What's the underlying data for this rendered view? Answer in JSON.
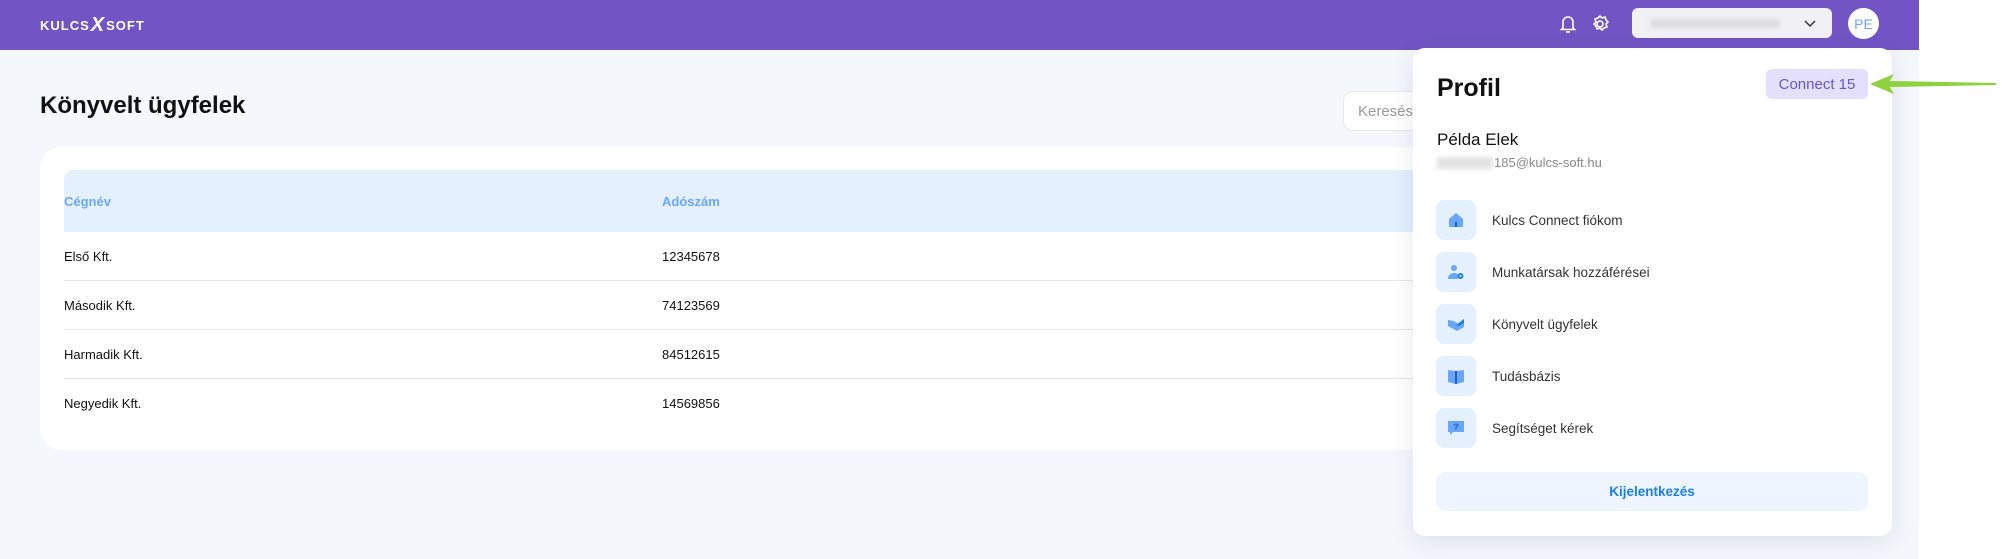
{
  "header": {
    "logo": {
      "left": "KULCS",
      "x": "X",
      "right": "SOFT"
    },
    "avatar_initials": "PE",
    "icons": [
      "bell-icon",
      "gear-icon",
      "chevron-down-icon"
    ]
  },
  "page": {
    "title": "Könyvelt ügyfelek",
    "search_placeholder": "Keresés"
  },
  "table": {
    "columns": [
      "Cégnév",
      "Adószám"
    ],
    "rows": [
      [
        "Első Kft.",
        "12345678"
      ],
      [
        "Második Kft.",
        "74123569"
      ],
      [
        "Harmadik Kft.",
        "84512615"
      ],
      [
        "Negyedik Kft.",
        "14569856"
      ]
    ]
  },
  "profile": {
    "title": "Profil",
    "version_badge": "Connect 15",
    "name": "Példa Elek",
    "email_visible": "185@kulcs-soft.hu",
    "menu": [
      {
        "label": "Kulcs Connect fiókom",
        "icon": "home-icon"
      },
      {
        "label": "Munkatársak hozzáférései",
        "icon": "user-settings-icon"
      },
      {
        "label": "Könyvelt ügyfelek",
        "icon": "handshake-icon"
      },
      {
        "label": "Tudásbázis",
        "icon": "book-icon"
      },
      {
        "label": "Segítséget kérek",
        "icon": "help-chat-icon"
      }
    ],
    "logout": "Kijelentkezés"
  },
  "colors": {
    "brand": "#7254c4",
    "accent": "#1a7fe8",
    "badge_bg": "#e4e0fb",
    "annotation_arrow": "#8fd13f"
  }
}
